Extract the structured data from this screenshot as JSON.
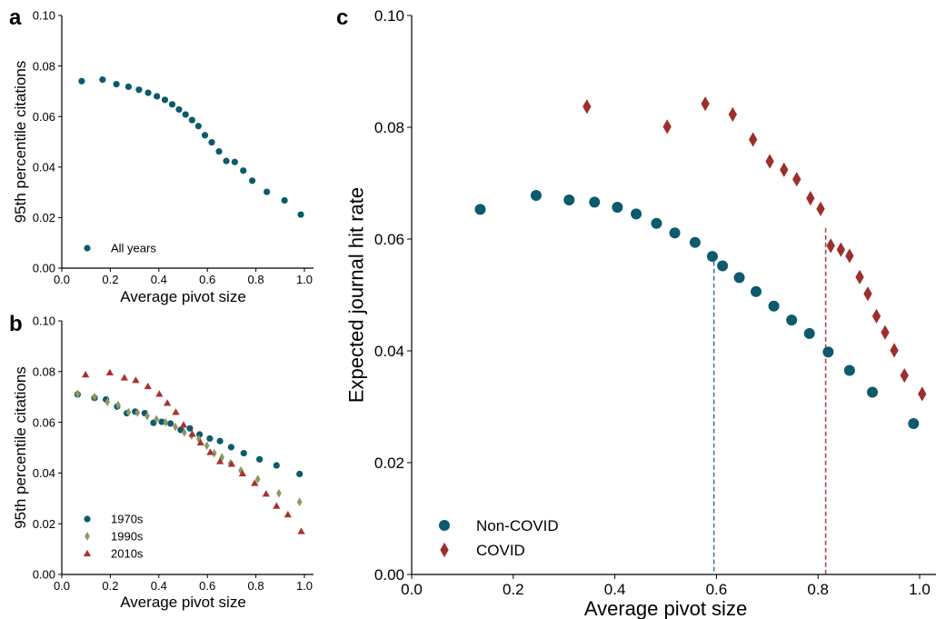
{
  "colors": {
    "teal": "#0c5a6e",
    "olive": "#8e9760",
    "red": "#a8322f",
    "red_diamond": "#9c2f2c",
    "dash_blue": "#3a6fa5",
    "dash_red": "#b03a3a"
  },
  "chart_data": [
    {
      "panel": "a",
      "type": "scatter",
      "xlabel": "Average pivot size",
      "ylabel": "95th percentile citations",
      "xlim": [
        0,
        1.0
      ],
      "ylim": [
        0,
        0.1
      ],
      "xticks": [
        "0.0",
        "0.2",
        "0.4",
        "0.6",
        "0.8",
        "1.0"
      ],
      "yticks": [
        "0.00",
        "0.02",
        "0.04",
        "0.06",
        "0.08",
        "0.10"
      ],
      "legend_position": "lower-left",
      "series": [
        {
          "name": "All years",
          "marker": "circle",
          "color": "#0c5a6e",
          "points": [
            [
              0.082,
              0.074
            ],
            [
              0.168,
              0.0746
            ],
            [
              0.225,
              0.0728
            ],
            [
              0.275,
              0.0718
            ],
            [
              0.318,
              0.0706
            ],
            [
              0.356,
              0.0694
            ],
            [
              0.392,
              0.068
            ],
            [
              0.425,
              0.0666
            ],
            [
              0.455,
              0.0648
            ],
            [
              0.483,
              0.0628
            ],
            [
              0.51,
              0.0608
            ],
            [
              0.537,
              0.0586
            ],
            [
              0.563,
              0.0562
            ],
            [
              0.59,
              0.0526
            ],
            [
              0.618,
              0.0498
            ],
            [
              0.648,
              0.0462
            ],
            [
              0.678,
              0.0424
            ],
            [
              0.713,
              0.042
            ],
            [
              0.748,
              0.0386
            ],
            [
              0.785,
              0.0346
            ],
            [
              0.845,
              0.0302
            ],
            [
              0.918,
              0.0268
            ],
            [
              0.985,
              0.0212
            ]
          ]
        }
      ]
    },
    {
      "panel": "b",
      "type": "scatter",
      "xlabel": "Average pivot size",
      "ylabel": "95th percentile citations",
      "xlim": [
        0,
        1.0
      ],
      "ylim": [
        0,
        0.1
      ],
      "xticks": [
        "0.0",
        "0.2",
        "0.4",
        "0.6",
        "0.8",
        "1.0"
      ],
      "yticks": [
        "0.00",
        "0.02",
        "0.04",
        "0.06",
        "0.08",
        "0.10"
      ],
      "legend_position": "lower-left",
      "series": [
        {
          "name": "1970s",
          "marker": "circle",
          "color": "#0c5a6e",
          "points": [
            [
              0.065,
              0.071
            ],
            [
              0.135,
              0.0696
            ],
            [
              0.182,
              0.069
            ],
            [
              0.228,
              0.0662
            ],
            [
              0.268,
              0.0636
            ],
            [
              0.302,
              0.0642
            ],
            [
              0.342,
              0.0636
            ],
            [
              0.378,
              0.0598
            ],
            [
              0.412,
              0.0602
            ],
            [
              0.448,
              0.0595
            ],
            [
              0.49,
              0.057
            ],
            [
              0.528,
              0.0576
            ],
            [
              0.568,
              0.0552
            ],
            [
              0.61,
              0.0536
            ],
            [
              0.652,
              0.0526
            ],
            [
              0.698,
              0.0502
            ],
            [
              0.75,
              0.0478
            ],
            [
              0.815,
              0.0454
            ],
            [
              0.885,
              0.043
            ],
            [
              0.98,
              0.0396
            ]
          ]
        },
        {
          "name": "1990s",
          "marker": "diamond",
          "color": "#8e9760",
          "points": [
            [
              0.065,
              0.0712
            ],
            [
              0.135,
              0.07
            ],
            [
              0.188,
              0.068
            ],
            [
              0.232,
              0.0668
            ],
            [
              0.275,
              0.064
            ],
            [
              0.312,
              0.0638
            ],
            [
              0.352,
              0.0625
            ],
            [
              0.39,
              0.0612
            ],
            [
              0.428,
              0.06
            ],
            [
              0.468,
              0.0582
            ],
            [
              0.505,
              0.056
            ],
            [
              0.535,
              0.0548
            ],
            [
              0.565,
              0.0534
            ],
            [
              0.598,
              0.0508
            ],
            [
              0.628,
              0.0478
            ],
            [
              0.66,
              0.0462
            ],
            [
              0.695,
              0.0438
            ],
            [
              0.738,
              0.041
            ],
            [
              0.808,
              0.0376
            ],
            [
              0.895,
              0.032
            ],
            [
              0.98,
              0.0286
            ]
          ]
        },
        {
          "name": "2010s",
          "marker": "triangle",
          "color": "#a8322f",
          "points": [
            [
              0.098,
              0.0788
            ],
            [
              0.198,
              0.0796
            ],
            [
              0.258,
              0.0776
            ],
            [
              0.305,
              0.0766
            ],
            [
              0.355,
              0.0742
            ],
            [
              0.402,
              0.0712
            ],
            [
              0.435,
              0.0676
            ],
            [
              0.47,
              0.064
            ],
            [
              0.502,
              0.059
            ],
            [
              0.538,
              0.0554
            ],
            [
              0.572,
              0.052
            ],
            [
              0.612,
              0.0482
            ],
            [
              0.652,
              0.0446
            ],
            [
              0.7,
              0.0436
            ],
            [
              0.745,
              0.0398
            ],
            [
              0.795,
              0.036
            ],
            [
              0.842,
              0.0318
            ],
            [
              0.885,
              0.027
            ],
            [
              0.932,
              0.0236
            ],
            [
              0.987,
              0.017
            ]
          ]
        }
      ]
    },
    {
      "panel": "c",
      "type": "scatter",
      "xlabel": "Average pivot size",
      "ylabel": "Expected journal hit rate",
      "xlim": [
        0,
        1.0
      ],
      "ylim": [
        0,
        0.1
      ],
      "xticks": [
        "0.0",
        "0.2",
        "0.4",
        "0.6",
        "0.8",
        "1.0"
      ],
      "yticks": [
        "0.00",
        "0.02",
        "0.04",
        "0.06",
        "0.08",
        "0.10"
      ],
      "legend_position": "lower-left",
      "vlines": [
        {
          "x": 0.595,
          "ymax": 0.056,
          "color": "#3a6fa5"
        },
        {
          "x": 0.815,
          "ymax": 0.062,
          "color": "#b03a3a"
        }
      ],
      "series": [
        {
          "name": "Non-COVID",
          "marker": "circle",
          "color": "#0c5a6e",
          "points": [
            [
              0.135,
              0.0653
            ],
            [
              0.245,
              0.0678
            ],
            [
              0.31,
              0.067
            ],
            [
              0.36,
              0.0666
            ],
            [
              0.405,
              0.0657
            ],
            [
              0.442,
              0.0645
            ],
            [
              0.482,
              0.0628
            ],
            [
              0.518,
              0.0611
            ],
            [
              0.558,
              0.0594
            ],
            [
              0.592,
              0.0569
            ],
            [
              0.612,
              0.0552
            ],
            [
              0.645,
              0.0531
            ],
            [
              0.678,
              0.0506
            ],
            [
              0.713,
              0.048
            ],
            [
              0.748,
              0.0455
            ],
            [
              0.783,
              0.0431
            ],
            [
              0.82,
              0.0398
            ],
            [
              0.862,
              0.0365
            ],
            [
              0.907,
              0.0326
            ],
            [
              0.988,
              0.027
            ]
          ]
        },
        {
          "name": "COVID",
          "marker": "diamond",
          "color": "#9c2f2c",
          "points": [
            [
              0.345,
              0.0837
            ],
            [
              0.503,
              0.0801
            ],
            [
              0.578,
              0.0842
            ],
            [
              0.632,
              0.0823
            ],
            [
              0.672,
              0.0778
            ],
            [
              0.705,
              0.0739
            ],
            [
              0.733,
              0.0724
            ],
            [
              0.758,
              0.0707
            ],
            [
              0.785,
              0.0673
            ],
            [
              0.805,
              0.0654
            ],
            [
              0.825,
              0.0588
            ],
            [
              0.845,
              0.0581
            ],
            [
              0.862,
              0.057
            ],
            [
              0.882,
              0.0532
            ],
            [
              0.898,
              0.0502
            ],
            [
              0.915,
              0.0462
            ],
            [
              0.932,
              0.0433
            ],
            [
              0.95,
              0.0401
            ],
            [
              0.97,
              0.0356
            ],
            [
              1.005,
              0.0323
            ]
          ]
        }
      ]
    }
  ]
}
